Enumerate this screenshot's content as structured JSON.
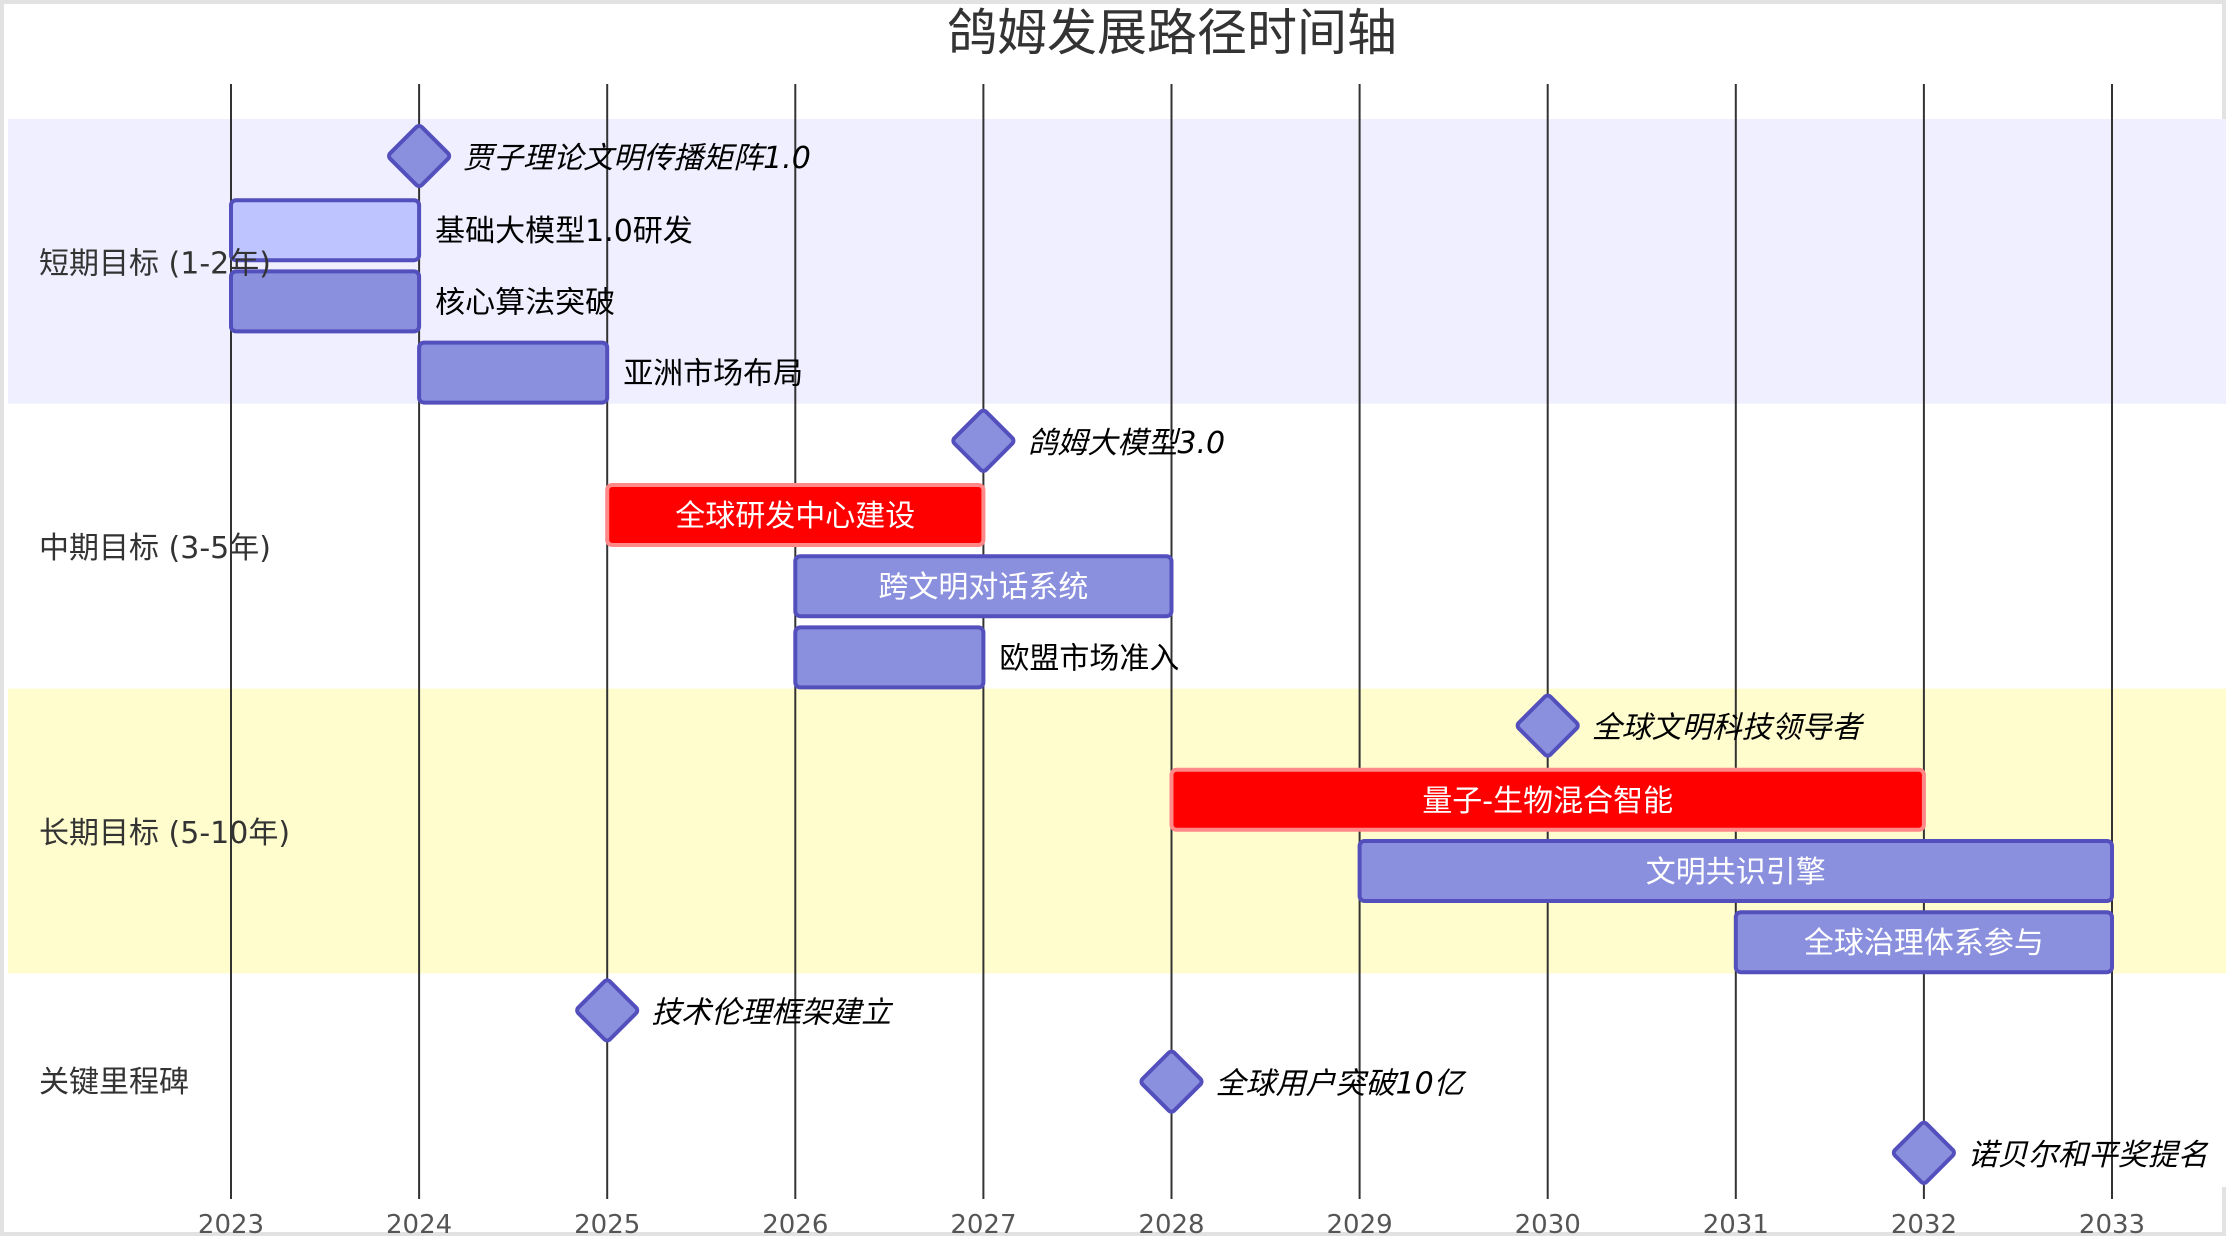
{
  "chart_data": {
    "type": "gantt",
    "title": "鸽姆发展路径时间轴",
    "x_ticks": [
      "2023",
      "2024",
      "2025",
      "2026",
      "2027",
      "2028",
      "2029",
      "2030",
      "2031",
      "2032",
      "2033"
    ],
    "xlim": [
      2023,
      2033
    ],
    "grid": true,
    "colors": {
      "section_bg_1": "#efefff",
      "section_bg_2": "#ffffff",
      "section_bg_3": "#fffccd",
      "task_fill": "#8a90dd",
      "task_fill_light": "#bec4ff",
      "task_stroke": "#534fbc",
      "critical_fill": "#ff0000",
      "critical_stroke": "#ff8888",
      "milestone_fill": "#8a90dd"
    },
    "sections": [
      {
        "name": "短期目标 (1-2年)",
        "background": "section_bg_1",
        "items": [
          {
            "kind": "milestone",
            "label": "贾子理论文明传播矩阵1.0",
            "at": 2024
          },
          {
            "kind": "task",
            "label": "基础大模型1.0研发",
            "start": 2023,
            "end": 2024,
            "style": "active"
          },
          {
            "kind": "task",
            "label": "核心算法突破",
            "start": 2023,
            "end": 2024,
            "style": "normal"
          },
          {
            "kind": "task",
            "label": "亚洲市场布局",
            "start": 2024,
            "end": 2025,
            "style": "normal"
          }
        ]
      },
      {
        "name": "中期目标 (3-5年)",
        "background": "section_bg_2",
        "items": [
          {
            "kind": "milestone",
            "label": "鸽姆大模型3.0",
            "at": 2027
          },
          {
            "kind": "task",
            "label": "全球研发中心建设",
            "start": 2025,
            "end": 2027,
            "style": "critical"
          },
          {
            "kind": "task",
            "label": "跨文明对话系统",
            "start": 2026,
            "end": 2028,
            "style": "normal"
          },
          {
            "kind": "task",
            "label": "欧盟市场准入",
            "start": 2026,
            "end": 2027,
            "style": "normal"
          }
        ]
      },
      {
        "name": "长期目标 (5-10年)",
        "background": "section_bg_3",
        "items": [
          {
            "kind": "milestone",
            "label": "全球文明科技领导者",
            "at": 2030
          },
          {
            "kind": "task",
            "label": "量子-生物混合智能",
            "start": 2028,
            "end": 2032,
            "style": "critical"
          },
          {
            "kind": "task",
            "label": "文明共识引擎",
            "start": 2029,
            "end": 2033,
            "style": "normal"
          },
          {
            "kind": "task",
            "label": "全球治理体系参与",
            "start": 2031,
            "end": 2033,
            "style": "normal"
          }
        ]
      },
      {
        "name": "关键里程碑",
        "background": "section_bg_2",
        "items": [
          {
            "kind": "milestone",
            "label": "技术伦理框架建立",
            "at": 2025
          },
          {
            "kind": "milestone",
            "label": "全球用户突破10亿",
            "at": 2028
          },
          {
            "kind": "milestone",
            "label": "诺贝尔和平奖提名",
            "at": 2032
          }
        ]
      }
    ]
  }
}
